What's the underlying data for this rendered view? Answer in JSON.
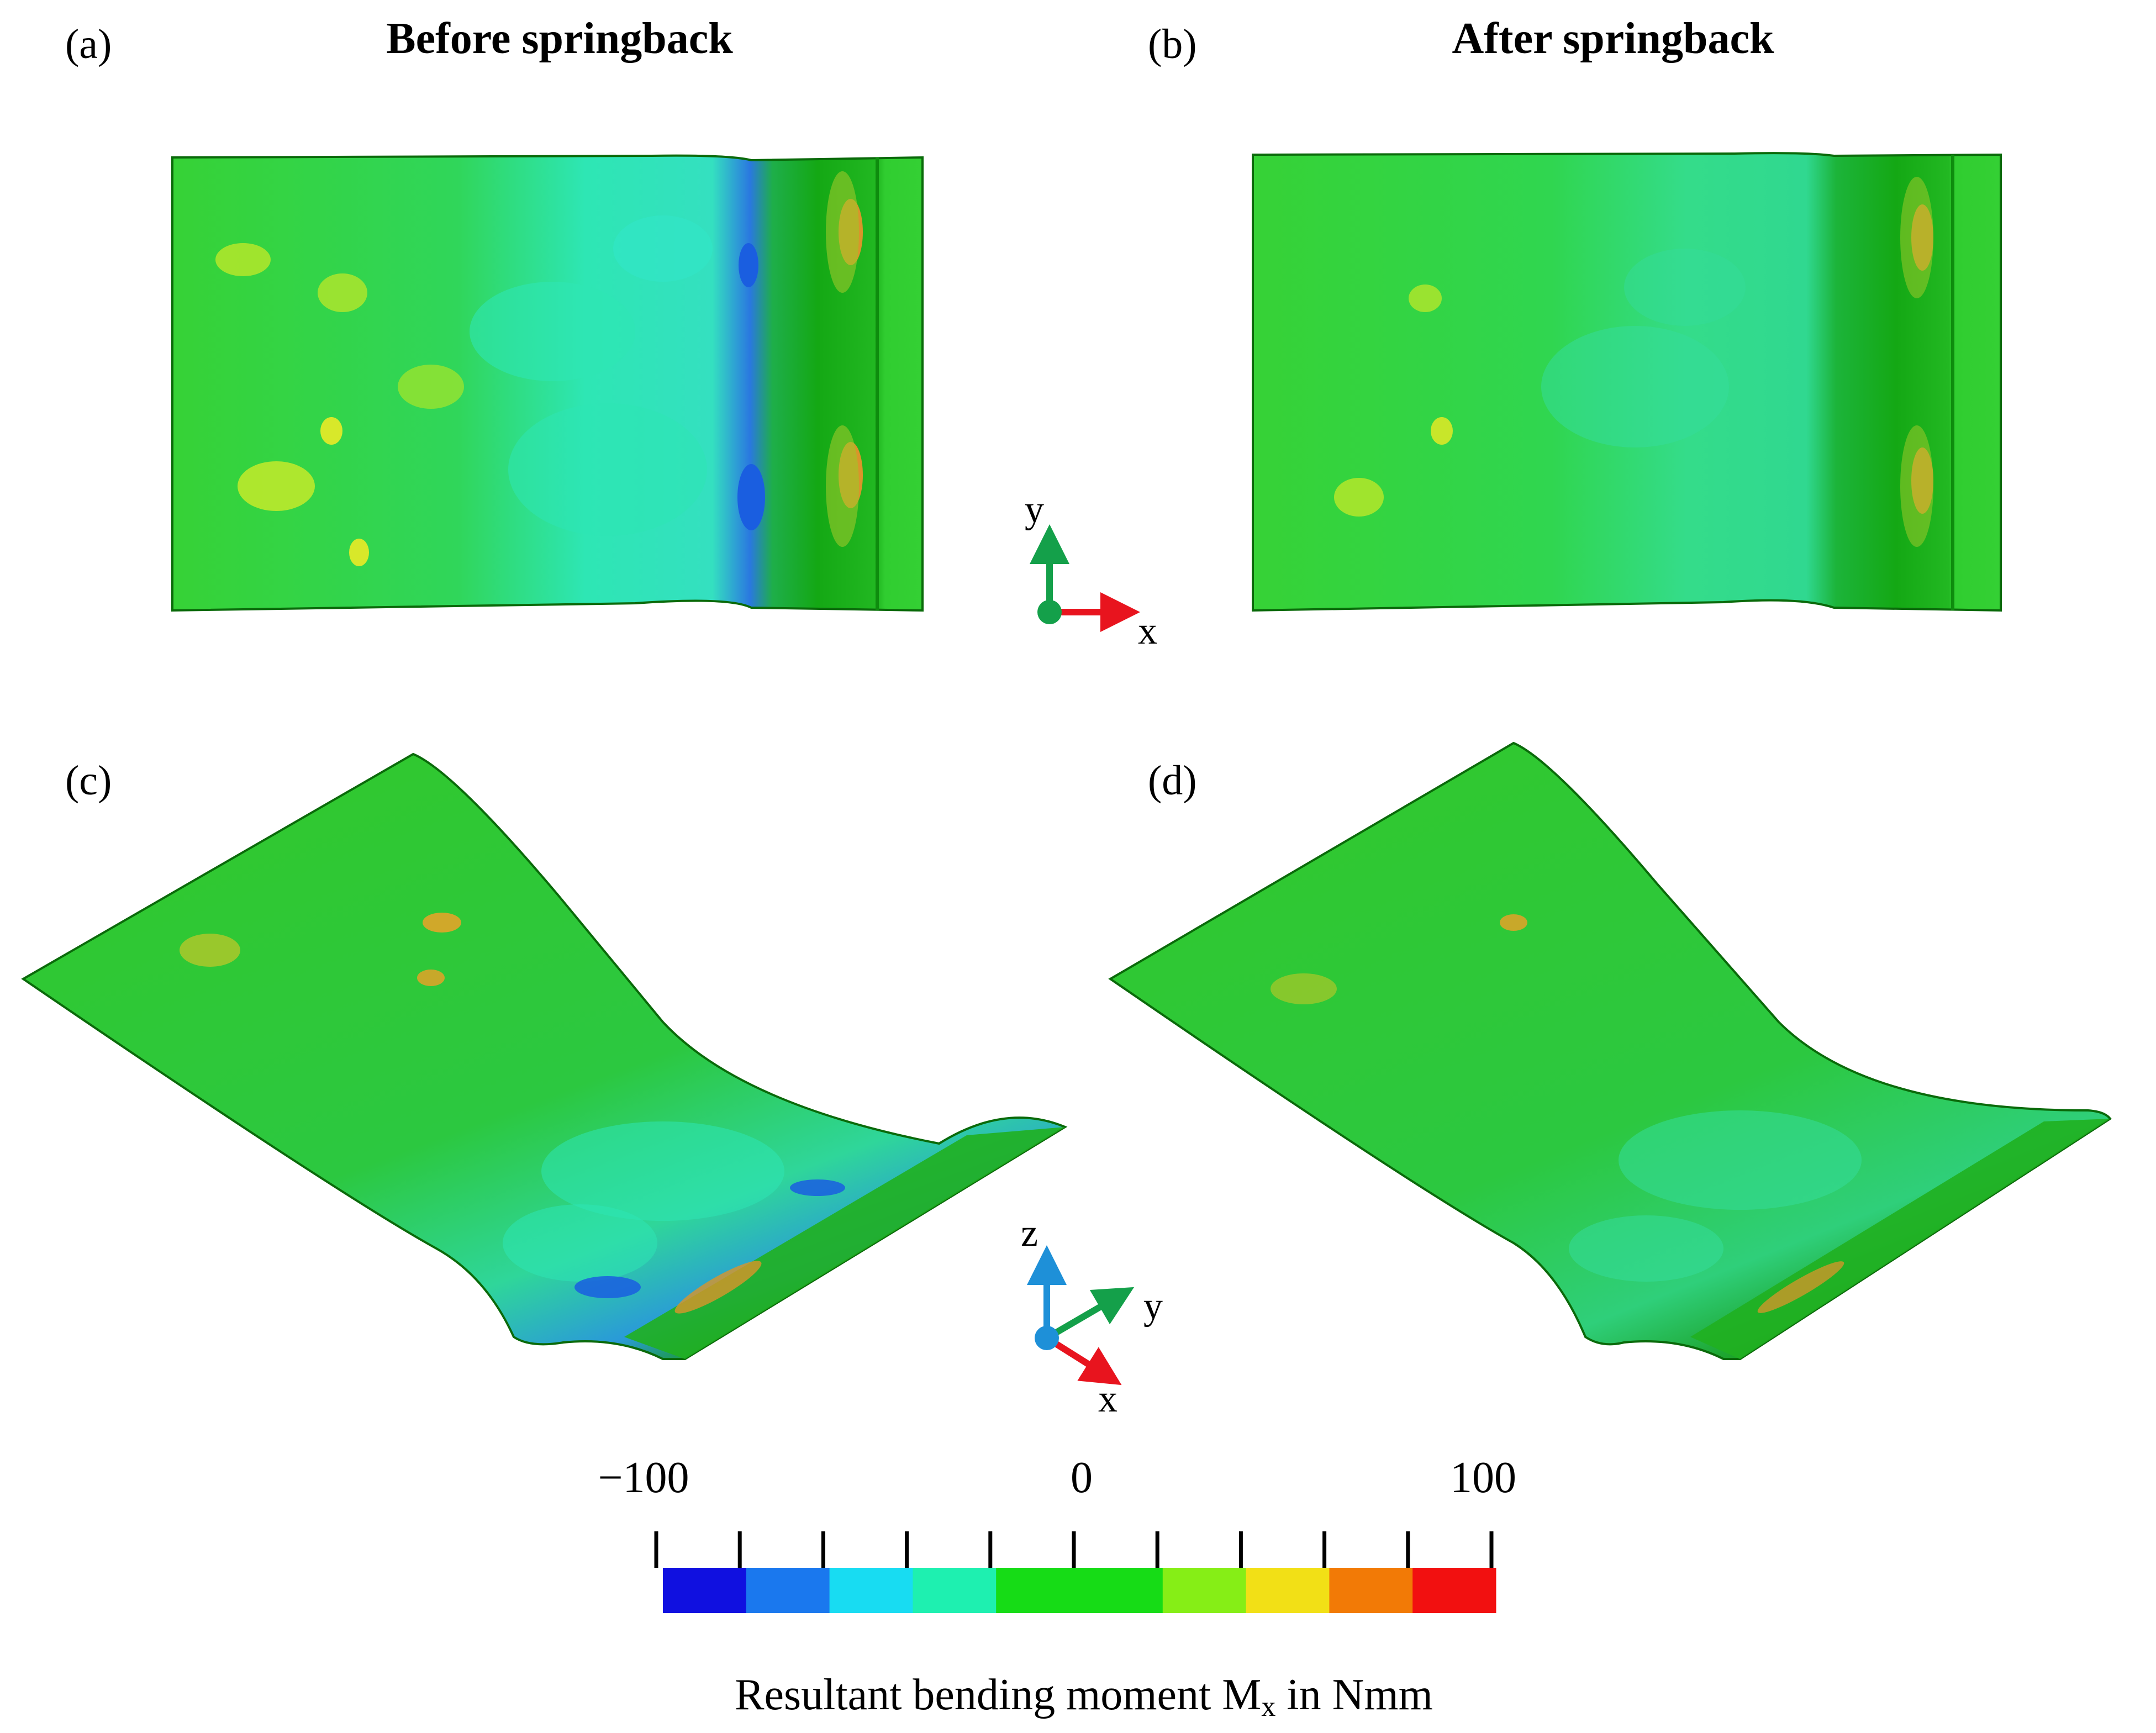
{
  "panels": [
    {
      "id": "a",
      "label": "(a)",
      "title": "Before springback"
    },
    {
      "id": "b",
      "label": "(b)",
      "title": "After springback"
    },
    {
      "id": "c",
      "label": "(c)",
      "title": ""
    },
    {
      "id": "d",
      "label": "(d)",
      "title": ""
    }
  ],
  "axes_top": {
    "vertical": "y",
    "horizontal": "x"
  },
  "axes_bottom": {
    "up": "z",
    "diagonal": "y",
    "down": "x"
  },
  "colorbar": {
    "title_main": "Resultant bending moment M",
    "title_sub": "x",
    "title_unit": " in Nmm",
    "tick_labels": [
      "−100",
      "0",
      "100"
    ],
    "range": [
      -100,
      100
    ],
    "colors": [
      "#1010e0",
      "#1a78ee",
      "#18dcf2",
      "#1ef0b0",
      "#16dc16",
      "#16dc16",
      "#86ee16",
      "#f2e016",
      "#f27a06",
      "#f21010"
    ],
    "tick_count": 11
  },
  "colors": {
    "plate_green": "#32cd32",
    "plate_dark": "#14a814",
    "cyan": "#2ee6b4",
    "blue": "#1a6ee8",
    "yellow": "#b4e62a",
    "orange": "#d99a2a",
    "axis_x": "#e8141e",
    "axis_y": "#14a04a",
    "axis_z": "#1e90d8"
  }
}
